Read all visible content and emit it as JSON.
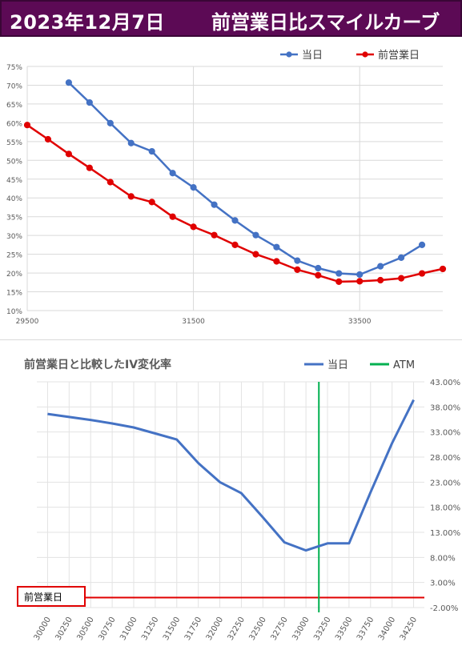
{
  "header": {
    "date": "2023年12月7日",
    "title": "前営業日比スマイルカーブ"
  },
  "chart_data": [
    {
      "type": "line",
      "title": "",
      "xlim": [
        29500,
        34500
      ],
      "ylim": [
        10,
        75
      ],
      "x_tick_labels": [
        "29500",
        "31500",
        "33500"
      ],
      "y_tick_labels": [
        "10%",
        "15%",
        "20%",
        "25%",
        "30%",
        "35%",
        "40%",
        "45%",
        "50%",
        "55%",
        "60%",
        "65%",
        "70%",
        "75%"
      ],
      "legend": "top-right",
      "series": [
        {
          "name": "当日",
          "color": "#4472c4",
          "x": [
            30000,
            30250,
            30500,
            30750,
            31000,
            31250,
            31500,
            31750,
            32000,
            32250,
            32500,
            32750,
            33000,
            33250,
            33500,
            33750,
            34000,
            34250
          ],
          "y": [
            70.7,
            65.4,
            59.9,
            54.6,
            52.4,
            46.6,
            42.8,
            38.2,
            34.0,
            30.1,
            26.9,
            23.3,
            21.3,
            19.9,
            19.6,
            21.8,
            24.1,
            27.5
          ]
        },
        {
          "name": "前営業日",
          "color": "#e00000",
          "x": [
            29500,
            29750,
            30000,
            30250,
            30500,
            30750,
            31000,
            31250,
            31500,
            31750,
            32000,
            32250,
            32500,
            32750,
            33000,
            33250,
            33500,
            33750,
            34000,
            34250,
            34500
          ],
          "y": [
            59.4,
            55.6,
            51.7,
            48.0,
            44.2,
            40.4,
            38.9,
            35.0,
            32.3,
            30.1,
            27.5,
            25.0,
            23.1,
            20.9,
            19.4,
            17.7,
            17.8,
            18.1,
            18.6,
            19.9,
            21.1
          ]
        }
      ]
    },
    {
      "type": "line",
      "title": "前営業日と比較したIV変化率",
      "categories": [
        "30000",
        "30250",
        "30500",
        "30750",
        "31000",
        "31250",
        "31500",
        "31750",
        "32000",
        "32250",
        "32500",
        "32750",
        "33000",
        "33250",
        "33500",
        "33750",
        "34000",
        "34250"
      ],
      "ylim": [
        -2,
        43
      ],
      "y_tick_labels": [
        "-2.00%",
        "3.00%",
        "8.00%",
        "13.00%",
        "18.00%",
        "23.00%",
        "28.00%",
        "33.00%",
        "38.00%",
        "43.00%"
      ],
      "legend": "top-right",
      "series": [
        {
          "name": "当日",
          "color": "#4472c4",
          "values": [
            36.6,
            36.0,
            35.4,
            34.7,
            33.9,
            32.7,
            31.5,
            26.8,
            23.0,
            20.8,
            16.0,
            11.0,
            9.4,
            10.8,
            10.8,
            21.0,
            30.8,
            39.4
          ]
        },
        {
          "name": "前営業日",
          "color": "#e00000",
          "values": [
            0,
            0,
            0,
            0,
            0,
            0,
            0,
            0,
            0,
            0,
            0,
            0,
            0,
            0,
            0,
            0,
            0,
            0
          ]
        }
      ],
      "atm": {
        "name": "ATM",
        "color": "#00b050",
        "position": 13.1
      },
      "annotation": "前営業日"
    }
  ]
}
